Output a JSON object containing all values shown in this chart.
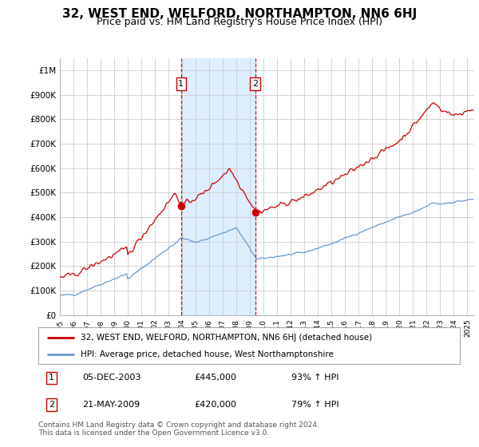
{
  "title": "32, WEST END, WELFORD, NORTHAMPTON, NN6 6HJ",
  "subtitle": "Price paid vs. HM Land Registry's House Price Index (HPI)",
  "title_fontsize": 11,
  "subtitle_fontsize": 9,
  "background_color": "#ffffff",
  "plot_bg_color": "#ffffff",
  "grid_color": "#cccccc",
  "ylim": [
    0,
    1050000
  ],
  "yticks": [
    0,
    100000,
    200000,
    300000,
    400000,
    500000,
    600000,
    700000,
    800000,
    900000,
    1000000
  ],
  "ytick_labels": [
    "£0",
    "£100K",
    "£200K",
    "£300K",
    "£400K",
    "£500K",
    "£600K",
    "£700K",
    "£800K",
    "£900K",
    "£1M"
  ],
  "xlim_start": 1995.0,
  "xlim_end": 2025.5,
  "xtick_years": [
    1995,
    1996,
    1997,
    1998,
    1999,
    2000,
    2001,
    2002,
    2003,
    2004,
    2005,
    2006,
    2007,
    2008,
    2009,
    2010,
    2011,
    2012,
    2013,
    2014,
    2015,
    2016,
    2017,
    2018,
    2019,
    2020,
    2021,
    2022,
    2023,
    2024,
    2025
  ],
  "line1_color": "#cc0000",
  "line2_color": "#6699cc",
  "shading_color": "#ddeeff",
  "vline1_x": 2003.92,
  "vline2_x": 2009.38,
  "marker1_x": 2003.92,
  "marker1_y": 445000,
  "marker2_x": 2009.38,
  "marker2_y": 420000,
  "legend_line1": "32, WEST END, WELFORD, NORTHAMPTON, NN6 6HJ (detached house)",
  "legend_line2": "HPI: Average price, detached house, West Northamptonshire",
  "table_entries": [
    {
      "num": "1",
      "date": "05-DEC-2003",
      "price": "£445,000",
      "hpi": "93% ↑ HPI"
    },
    {
      "num": "2",
      "date": "21-MAY-2009",
      "price": "£420,000",
      "hpi": "79% ↑ HPI"
    }
  ],
  "footnote": "Contains HM Land Registry data © Crown copyright and database right 2024.\nThis data is licensed under the Open Government Licence v3.0."
}
